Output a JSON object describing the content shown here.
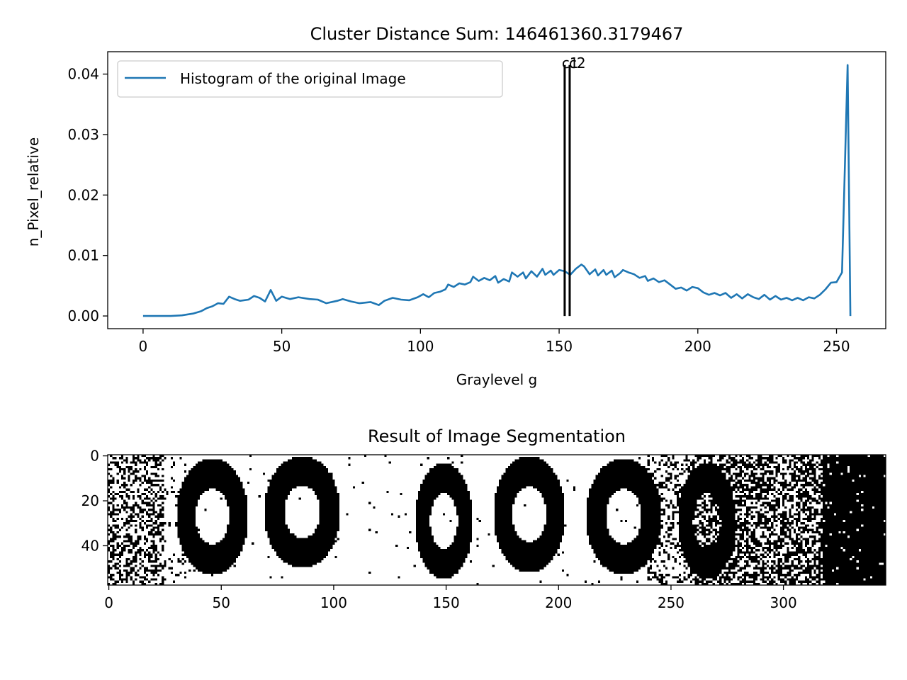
{
  "chart_data": [
    {
      "type": "line",
      "title": "Cluster Distance Sum: 146461360.3179467",
      "xlabel": "Graylevel g",
      "ylabel": "n_Pixel_relative",
      "xlim": [
        -12.75,
        267.75
      ],
      "ylim": [
        -0.0021,
        0.0437
      ],
      "xticks": [
        0,
        50,
        100,
        150,
        200,
        250
      ],
      "yticks": [
        0.0,
        0.01,
        0.02,
        0.03,
        0.04
      ],
      "ytick_labels": [
        "0.00",
        "0.01",
        "0.02",
        "0.03",
        "0.04"
      ],
      "legend_position": "upper-left",
      "grid": false,
      "series": [
        {
          "name": "Histogram of the original Image",
          "color": "#1f77b4",
          "points": [
            [
              0,
              0.0
            ],
            [
              5,
              0.0
            ],
            [
              10,
              0.0
            ],
            [
              14,
              0.0001
            ],
            [
              18,
              0.0004
            ],
            [
              21,
              0.0008
            ],
            [
              23,
              0.0013
            ],
            [
              25,
              0.0016
            ],
            [
              27,
              0.0021
            ],
            [
              29,
              0.002
            ],
            [
              31,
              0.0032
            ],
            [
              33,
              0.0028
            ],
            [
              35,
              0.0025
            ],
            [
              38,
              0.0027
            ],
            [
              40,
              0.0033
            ],
            [
              42,
              0.003
            ],
            [
              44,
              0.0024
            ],
            [
              46,
              0.0043
            ],
            [
              48,
              0.0025
            ],
            [
              50,
              0.0032
            ],
            [
              53,
              0.0028
            ],
            [
              56,
              0.0031
            ],
            [
              60,
              0.0028
            ],
            [
              63,
              0.0027
            ],
            [
              66,
              0.0021
            ],
            [
              70,
              0.0025
            ],
            [
              72,
              0.0028
            ],
            [
              75,
              0.0024
            ],
            [
              78,
              0.0021
            ],
            [
              82,
              0.0023
            ],
            [
              85,
              0.0018
            ],
            [
              87,
              0.0025
            ],
            [
              90,
              0.003
            ],
            [
              93,
              0.0027
            ],
            [
              96,
              0.0026
            ],
            [
              99,
              0.0031
            ],
            [
              101,
              0.0036
            ],
            [
              103,
              0.0031
            ],
            [
              105,
              0.0038
            ],
            [
              107,
              0.004
            ],
            [
              109,
              0.0044
            ],
            [
              110,
              0.0052
            ],
            [
              112,
              0.0048
            ],
            [
              114,
              0.0054
            ],
            [
              116,
              0.0052
            ],
            [
              118,
              0.0056
            ],
            [
              119,
              0.0065
            ],
            [
              121,
              0.0058
            ],
            [
              123,
              0.0063
            ],
            [
              125,
              0.0059
            ],
            [
              127,
              0.0066
            ],
            [
              128,
              0.0055
            ],
            [
              130,
              0.0061
            ],
            [
              132,
              0.0057
            ],
            [
              133,
              0.0072
            ],
            [
              135,
              0.0065
            ],
            [
              137,
              0.0072
            ],
            [
              138,
              0.0062
            ],
            [
              140,
              0.0074
            ],
            [
              142,
              0.0065
            ],
            [
              144,
              0.0078
            ],
            [
              145,
              0.0068
            ],
            [
              147,
              0.0075
            ],
            [
              148,
              0.0068
            ],
            [
              150,
              0.0076
            ],
            [
              152,
              0.0074
            ],
            [
              154,
              0.0068
            ],
            [
              156,
              0.0078
            ],
            [
              158,
              0.0085
            ],
            [
              159,
              0.0082
            ],
            [
              161,
              0.0069
            ],
            [
              163,
              0.0077
            ],
            [
              164,
              0.0067
            ],
            [
              166,
              0.0076
            ],
            [
              167,
              0.0068
            ],
            [
              169,
              0.0075
            ],
            [
              170,
              0.0064
            ],
            [
              172,
              0.0071
            ],
            [
              173,
              0.0076
            ],
            [
              175,
              0.0072
            ],
            [
              177,
              0.0069
            ],
            [
              179,
              0.0063
            ],
            [
              181,
              0.0066
            ],
            [
              182,
              0.0058
            ],
            [
              184,
              0.0062
            ],
            [
              186,
              0.0056
            ],
            [
              188,
              0.0059
            ],
            [
              190,
              0.0052
            ],
            [
              192,
              0.0045
            ],
            [
              194,
              0.0047
            ],
            [
              196,
              0.0042
            ],
            [
              198,
              0.0048
            ],
            [
              200,
              0.0046
            ],
            [
              202,
              0.0039
            ],
            [
              204,
              0.0035
            ],
            [
              206,
              0.0038
            ],
            [
              208,
              0.0034
            ],
            [
              210,
              0.0038
            ],
            [
              212,
              0.003
            ],
            [
              214,
              0.0036
            ],
            [
              216,
              0.0029
            ],
            [
              218,
              0.0036
            ],
            [
              220,
              0.0031
            ],
            [
              222,
              0.0028
            ],
            [
              224,
              0.0035
            ],
            [
              226,
              0.0027
            ],
            [
              228,
              0.0033
            ],
            [
              230,
              0.0027
            ],
            [
              232,
              0.003
            ],
            [
              234,
              0.0026
            ],
            [
              236,
              0.003
            ],
            [
              238,
              0.0026
            ],
            [
              240,
              0.0031
            ],
            [
              242,
              0.0029
            ],
            [
              244,
              0.0035
            ],
            [
              246,
              0.0044
            ],
            [
              248,
              0.0055
            ],
            [
              250,
              0.0056
            ],
            [
              252,
              0.0072
            ],
            [
              254,
              0.0415
            ],
            [
              255,
              0.0
            ]
          ]
        }
      ],
      "cluster_markers": [
        {
          "label": "c1",
          "x": 152,
          "ymin": 0.0,
          "ymax": 0.0415,
          "color": "#000000"
        },
        {
          "label": "c2",
          "x": 153.8,
          "ymin": 0.0,
          "ymax": 0.0415,
          "color": "#000000"
        }
      ]
    },
    {
      "type": "heatmap",
      "title": "Result of Image Segmentation",
      "width": 346,
      "height": 58,
      "colormap": [
        "#000000",
        "#ffffff"
      ],
      "xticks": [
        0,
        50,
        100,
        150,
        200,
        250,
        300
      ],
      "yticks": [
        0,
        20,
        40
      ],
      "description_of_content": "",
      "blobs": [
        {
          "cx": 46,
          "cy": 27,
          "rx": 16,
          "ry": 26
        },
        {
          "cx": 86,
          "cy": 25,
          "rx": 17,
          "ry": 25
        },
        {
          "cx": 149,
          "cy": 29,
          "rx": 13,
          "ry": 26
        },
        {
          "cx": 187,
          "cy": 26,
          "rx": 16,
          "ry": 26
        },
        {
          "cx": 229,
          "cy": 27,
          "rx": 17,
          "ry": 26
        },
        {
          "cx": 266,
          "cy": 29,
          "rx": 13,
          "ry": 26
        }
      ]
    }
  ]
}
